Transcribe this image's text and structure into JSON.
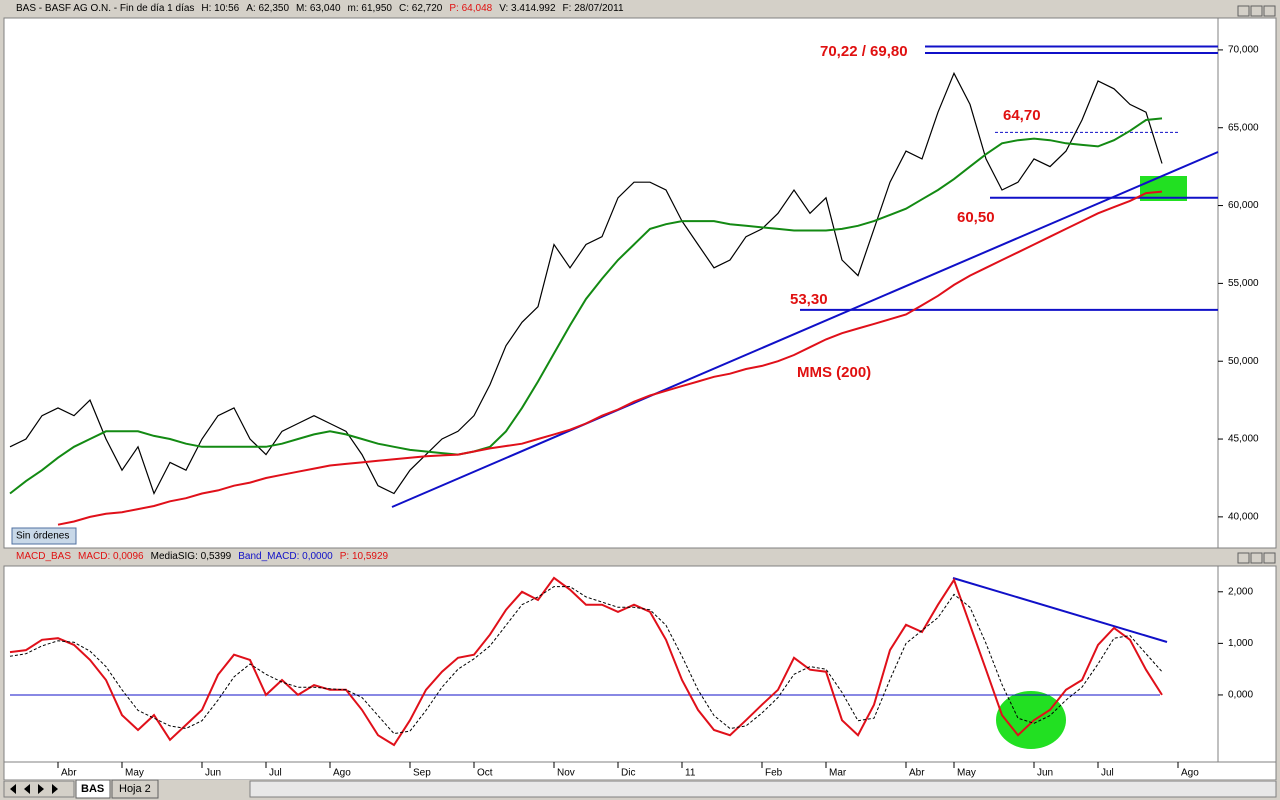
{
  "chart_data": [
    {
      "type": "line",
      "header": [
        {
          "text": "BAS - BASF AG O.N. - Fin de día 1 días",
          "color": "#000000"
        },
        {
          "text": "H: 10:56",
          "color": "#000000"
        },
        {
          "text": "A: 62,350",
          "color": "#000000"
        },
        {
          "text": "M: 63,040",
          "color": "#000000"
        },
        {
          "text": "m: 61,950",
          "color": "#000000"
        },
        {
          "text": "C: 62,720",
          "color": "#000000"
        },
        {
          "text": "P: 64,048",
          "color": "#e01010"
        },
        {
          "text": "V: 3.414.992",
          "color": "#000000"
        },
        {
          "text": "F: 28/07/2011",
          "color": "#000000"
        }
      ],
      "categories": [
        null,
        null,
        null,
        "Abr",
        null,
        null,
        null,
        "May",
        null,
        null,
        null,
        null,
        "Jun",
        null,
        null,
        null,
        "Jul",
        null,
        null,
        null,
        "Ago",
        null,
        null,
        null,
        null,
        "Sep",
        null,
        null,
        null,
        "Oct",
        null,
        null,
        null,
        null,
        "Nov",
        null,
        null,
        null,
        "Dic",
        null,
        null,
        null,
        "11",
        null,
        null,
        null,
        null,
        "Feb",
        null,
        null,
        null,
        "Mar",
        null,
        null,
        null,
        null,
        "Abr",
        null,
        null,
        "May",
        null,
        null,
        null,
        null,
        "Jun",
        null,
        null,
        null,
        "Jul",
        null,
        null,
        null,
        null,
        "Ago",
        null,
        null
      ],
      "series": [
        {
          "color": "#000000",
          "values": [
            44500,
            45000,
            46500,
            47000,
            46500,
            47500,
            45000,
            43000,
            44500,
            41500,
            43500,
            43000,
            45000,
            46500,
            47000,
            45000,
            44000,
            45500,
            46000,
            46500,
            46000,
            45500,
            44000,
            42000,
            41500,
            43000,
            44000,
            45000,
            45500,
            46500,
            48500,
            51000,
            52500,
            53500,
            57500,
            56000,
            57500,
            58000,
            60500,
            61500,
            61500,
            61000,
            59000,
            57500,
            56000,
            56500,
            58000,
            58500,
            59500,
            61000,
            59500,
            60500,
            56500,
            55500,
            58500,
            61500,
            63500,
            63000,
            66000,
            68500,
            66500,
            63000,
            61000,
            61500,
            63000,
            62500,
            63500,
            65500,
            68000,
            67500,
            66500,
            66000,
            62700,
            null,
            null,
            null
          ]
        },
        {
          "color": "#138a13",
          "values": [
            41500,
            42300,
            43000,
            43800,
            44500,
            45000,
            45500,
            45500,
            45500,
            45200,
            45000,
            44700,
            44500,
            44500,
            44500,
            44500,
            44500,
            44700,
            45000,
            45300,
            45500,
            45300,
            45000,
            44700,
            44500,
            44300,
            44200,
            44100,
            44000,
            44200,
            44500,
            45500,
            47000,
            48700,
            50500,
            52300,
            54000,
            55300,
            56500,
            57500,
            58500,
            58800,
            59000,
            59000,
            59000,
            58800,
            58700,
            58600,
            58500,
            58400,
            58400,
            58400,
            58500,
            58700,
            59000,
            59400,
            59800,
            60400,
            61000,
            61700,
            62500,
            63300,
            64000,
            64200,
            64300,
            64200,
            64000,
            63900,
            63800,
            64200,
            64800,
            65500,
            65600,
            null,
            null,
            null
          ]
        },
        {
          "name": "MMS (200)",
          "color": "#e0101a",
          "values": [
            null,
            null,
            null,
            39500,
            39700,
            40000,
            40200,
            40300,
            40500,
            40700,
            41000,
            41200,
            41500,
            41700,
            42000,
            42200,
            42500,
            42700,
            42900,
            43100,
            43300,
            43400,
            43500,
            43600,
            43700,
            43800,
            43900,
            43950,
            44000,
            44200,
            44400,
            44550,
            44700,
            45000,
            45300,
            45600,
            46000,
            46500,
            46900,
            47400,
            47800,
            48100,
            48400,
            48700,
            49000,
            49200,
            49500,
            49700,
            50000,
            50400,
            50900,
            51400,
            51800,
            52100,
            52400,
            52700,
            53000,
            53600,
            54200,
            54900,
            55500,
            56000,
            56500,
            57000,
            57500,
            58000,
            58500,
            59000,
            59500,
            59900,
            60300,
            60800,
            60900,
            null,
            null,
            null
          ]
        }
      ],
      "levels": [
        {
          "values": [
            70220,
            69800
          ],
          "label": "70,22 / 69,80"
        },
        {
          "value": 64700,
          "label": "64,70",
          "style": "dashed"
        },
        {
          "value": 60500,
          "label": "60,50"
        },
        {
          "value": 53300,
          "label": "53,30"
        }
      ],
      "level_color": "#1010c8",
      "label_color": "#e01010",
      "ylim": [
        38000,
        72050
      ],
      "yticks": [
        {
          "value": 40000,
          "label": "40,000"
        },
        {
          "value": 45000,
          "label": "45,000"
        },
        {
          "value": 50000,
          "label": "50,000"
        },
        {
          "value": 55000,
          "label": "55,000"
        },
        {
          "value": 60000,
          "label": "60,000"
        },
        {
          "value": 65000,
          "label": "65,000"
        },
        {
          "value": 70000,
          "label": "70,000"
        }
      ]
    },
    {
      "type": "line",
      "header": [
        {
          "text": "MACD_BAS",
          "color": "#e01010"
        },
        {
          "text": "MACD: 0,0096",
          "color": "#e01010"
        },
        {
          "text": "MediaSIG: 0,5399",
          "color": "#000000"
        },
        {
          "text": "Band_MACD: 0,0000",
          "color": "#1010c8"
        },
        {
          "text": "P: 10,5929",
          "color": "#e01010"
        }
      ],
      "series": [
        {
          "color": "#e0101a",
          "values": [
            0.83,
            0.87,
            1.07,
            1.1,
            0.97,
            0.68,
            0.29,
            -0.39,
            -0.68,
            -0.39,
            -0.87,
            -0.58,
            -0.29,
            0.39,
            0.78,
            0.68,
            0.0,
            0.29,
            0.0,
            0.19,
            0.1,
            0.1,
            -0.29,
            -0.78,
            -0.97,
            -0.49,
            0.1,
            0.45,
            0.72,
            0.78,
            1.17,
            1.65,
            2.0,
            1.84,
            2.27,
            2.04,
            1.75,
            1.75,
            1.61,
            1.75,
            1.61,
            1.07,
            0.29,
            -0.29,
            -0.68,
            -0.78,
            -0.49,
            -0.19,
            0.1,
            0.72,
            0.49,
            0.45,
            -0.49,
            -0.78,
            -0.19,
            0.87,
            1.36,
            1.22,
            1.75,
            2.23,
            1.36,
            0.49,
            -0.39,
            -0.78,
            -0.49,
            -0.29,
            0.1,
            0.29,
            0.97,
            1.3,
            1.07,
            0.49,
            0.0,
            null,
            null,
            null
          ]
        },
        {
          "color": "#000000",
          "style": "dashed",
          "values": [
            0.75,
            0.8,
            0.95,
            1.05,
            1.02,
            0.85,
            0.55,
            0.1,
            -0.3,
            -0.45,
            -0.6,
            -0.65,
            -0.5,
            -0.1,
            0.35,
            0.6,
            0.4,
            0.25,
            0.15,
            0.15,
            0.12,
            0.1,
            -0.05,
            -0.4,
            -0.75,
            -0.7,
            -0.3,
            0.15,
            0.5,
            0.7,
            0.95,
            1.35,
            1.75,
            1.9,
            2.1,
            2.1,
            1.9,
            1.8,
            1.7,
            1.7,
            1.65,
            1.35,
            0.75,
            0.1,
            -0.4,
            -0.65,
            -0.6,
            -0.35,
            -0.05,
            0.4,
            0.55,
            0.5,
            0.05,
            -0.5,
            -0.45,
            0.3,
            1.0,
            1.25,
            1.5,
            1.95,
            1.7,
            1.0,
            0.2,
            -0.45,
            -0.55,
            -0.4,
            -0.1,
            0.15,
            0.6,
            1.1,
            1.15,
            0.8,
            0.45,
            null,
            null,
            null
          ]
        }
      ],
      "reference_line": {
        "value": 0,
        "color": "#1010c8"
      },
      "ylim": [
        -1.3,
        2.5
      ],
      "yticks": [
        {
          "value": 0,
          "label": "0,000"
        },
        {
          "value": 1,
          "label": "1,000"
        },
        {
          "value": 2,
          "label": "2,000"
        }
      ]
    }
  ],
  "status": "Sin órdenes",
  "tabs": [
    "BAS",
    "Hoja 2"
  ]
}
